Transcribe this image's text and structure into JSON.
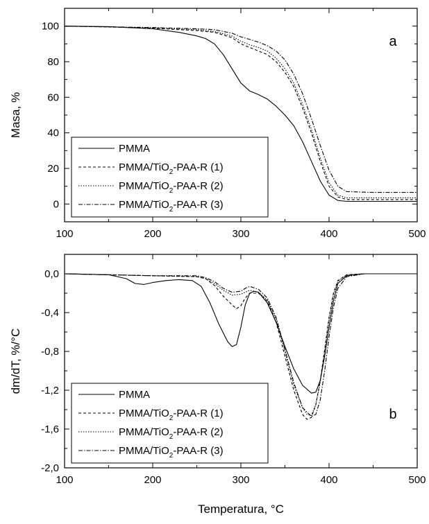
{
  "chart_data": [
    {
      "type": "line",
      "panel_label": "a",
      "ylabel": "Masa, %",
      "xlabel": "",
      "xlim": [
        100,
        500
      ],
      "ylim": [
        -10,
        110
      ],
      "x_ticks": [
        100,
        200,
        300,
        400,
        500
      ],
      "y_ticks": [
        0,
        20,
        40,
        60,
        80,
        100
      ],
      "x_tick_labels": [
        "100",
        "200",
        "300",
        "400",
        "500"
      ],
      "y_tick_labels": [
        "0",
        "20",
        "40",
        "60",
        "80",
        "100"
      ],
      "grid": false,
      "legend_position": "bottom-left",
      "series": [
        {
          "name": "PMMA",
          "legend_main": "PMMA",
          "legend_sub": "",
          "legend_tail": "",
          "dash": "solid",
          "x": [
            100,
            150,
            200,
            230,
            250,
            260,
            270,
            280,
            290,
            300,
            310,
            320,
            330,
            340,
            350,
            360,
            370,
            380,
            390,
            400,
            410,
            420,
            450,
            500
          ],
          "y": [
            100,
            99.7,
            98.5,
            96.5,
            94.5,
            93,
            90,
            84,
            76,
            68,
            63.5,
            61.5,
            59,
            55,
            50,
            44,
            35,
            24,
            13,
            5,
            2,
            1.5,
            1.5,
            1.5
          ]
        },
        {
          "name": "PMMA/TiO2-PAA-R (1)",
          "legend_main": "PMMA/TiO",
          "legend_sub": "2",
          "legend_tail": "-PAA-R (1)",
          "dash": "4,3",
          "x": [
            100,
            150,
            200,
            250,
            270,
            290,
            300,
            310,
            320,
            330,
            340,
            350,
            360,
            370,
            380,
            390,
            400,
            410,
            420,
            450,
            500
          ],
          "y": [
            100,
            99.5,
            98.8,
            97.5,
            96.5,
            93.5,
            90,
            88,
            86,
            84,
            80,
            74,
            66,
            54,
            40,
            24,
            10,
            4,
            2.5,
            2.5,
            2.5
          ]
        },
        {
          "name": "PMMA/TiO2-PAA-R (2)",
          "legend_main": "PMMA/TiO",
          "legend_sub": "2",
          "legend_tail": "-PAA-R (2)",
          "dash": "1.5,2",
          "x": [
            100,
            150,
            200,
            250,
            270,
            290,
            300,
            310,
            320,
            330,
            340,
            350,
            360,
            370,
            380,
            390,
            400,
            410,
            420,
            450,
            500
          ],
          "y": [
            100,
            99.5,
            99,
            98,
            97,
            94.5,
            91.5,
            89.5,
            88,
            86,
            82,
            76,
            68,
            56,
            42,
            26,
            12,
            5,
            3.5,
            3.5,
            3.5
          ]
        },
        {
          "name": "PMMA/TiO2-PAA-R (3)",
          "legend_main": "PMMA/TiO",
          "legend_sub": "2",
          "legend_tail": "-PAA-R (3)",
          "dash": "6,2,1.5,2",
          "x": [
            100,
            150,
            200,
            250,
            270,
            290,
            300,
            310,
            320,
            330,
            340,
            350,
            360,
            370,
            380,
            390,
            400,
            410,
            420,
            450,
            500
          ],
          "y": [
            100,
            99.6,
            99.2,
            98.5,
            98,
            96,
            94,
            92.5,
            91,
            89,
            86,
            81,
            73,
            62,
            48,
            33,
            19,
            10,
            7,
            6.5,
            6.5
          ]
        }
      ]
    },
    {
      "type": "line",
      "panel_label": "b",
      "ylabel": "dm/dT, %/°C",
      "xlabel": "Temperatura, °C",
      "xlim": [
        100,
        500
      ],
      "ylim": [
        -2.0,
        0.2
      ],
      "x_ticks": [
        100,
        200,
        300,
        400,
        500
      ],
      "y_ticks": [
        0.0,
        -0.4,
        -0.8,
        -1.2,
        -1.6,
        -2.0
      ],
      "x_tick_labels": [
        "100",
        "200",
        "300",
        "400",
        "500"
      ],
      "y_tick_labels": [
        "0,0",
        "-0,4",
        "-0,8",
        "-1,2",
        "-1,6",
        "-2,0"
      ],
      "grid": false,
      "legend_position": "bottom-left",
      "series": [
        {
          "name": "PMMA",
          "legend_main": "PMMA",
          "legend_sub": "",
          "legend_tail": "",
          "dash": "solid",
          "x": [
            100,
            150,
            170,
            180,
            190,
            200,
            215,
            230,
            245,
            255,
            265,
            275,
            285,
            290,
            295,
            300,
            305,
            310,
            315,
            320,
            330,
            340,
            350,
            360,
            370,
            380,
            385,
            390,
            395,
            400,
            405,
            410,
            420,
            440,
            470,
            500
          ],
          "y": [
            0,
            -0.01,
            -0.05,
            -0.1,
            -0.11,
            -0.09,
            -0.07,
            -0.06,
            -0.07,
            -0.13,
            -0.3,
            -0.52,
            -0.7,
            -0.75,
            -0.73,
            -0.55,
            -0.32,
            -0.2,
            -0.18,
            -0.19,
            -0.3,
            -0.5,
            -0.75,
            -0.98,
            -1.15,
            -1.23,
            -1.22,
            -1.1,
            -0.85,
            -0.55,
            -0.28,
            -0.1,
            -0.02,
            0,
            0,
            0
          ]
        },
        {
          "name": "PMMA/TiO2-PAA-R (1)",
          "legend_main": "PMMA/TiO",
          "legend_sub": "2",
          "legend_tail": "-PAA-R (1)",
          "dash": "4,3",
          "x": [
            100,
            150,
            200,
            250,
            260,
            270,
            280,
            290,
            295,
            300,
            305,
            310,
            320,
            330,
            340,
            350,
            360,
            370,
            375,
            380,
            385,
            390,
            395,
            400,
            405,
            410,
            420,
            440,
            470,
            500
          ],
          "y": [
            0,
            -0.01,
            -0.02,
            -0.03,
            -0.05,
            -0.12,
            -0.23,
            -0.32,
            -0.36,
            -0.33,
            -0.25,
            -0.2,
            -0.2,
            -0.28,
            -0.5,
            -0.85,
            -1.2,
            -1.45,
            -1.5,
            -1.48,
            -1.35,
            -1.1,
            -0.78,
            -0.45,
            -0.2,
            -0.07,
            -0.01,
            0,
            0,
            0
          ]
        },
        {
          "name": "PMMA/TiO2-PAA-R (2)",
          "legend_main": "PMMA/TiO",
          "legend_sub": "2",
          "legend_tail": "-PAA-R (2)",
          "dash": "1.5,2",
          "x": [
            100,
            150,
            200,
            250,
            260,
            270,
            280,
            290,
            300,
            305,
            310,
            320,
            330,
            340,
            350,
            360,
            370,
            375,
            380,
            385,
            390,
            395,
            400,
            405,
            410,
            420,
            440,
            470,
            500
          ],
          "y": [
            0,
            -0.01,
            -0.02,
            -0.03,
            -0.05,
            -0.1,
            -0.17,
            -0.22,
            -0.21,
            -0.19,
            -0.17,
            -0.19,
            -0.27,
            -0.47,
            -0.8,
            -1.15,
            -1.38,
            -1.45,
            -1.46,
            -1.35,
            -1.12,
            -0.8,
            -0.47,
            -0.22,
            -0.08,
            -0.01,
            0,
            0,
            0
          ]
        },
        {
          "name": "PMMA/TiO2-PAA-R (3)",
          "legend_main": "PMMA/TiO",
          "legend_sub": "2",
          "legend_tail": "-PAA-R (3)",
          "dash": "6,2,1.5,2",
          "x": [
            100,
            150,
            200,
            250,
            260,
            270,
            280,
            290,
            300,
            305,
            310,
            320,
            330,
            340,
            350,
            360,
            370,
            380,
            385,
            390,
            395,
            400,
            405,
            410,
            420,
            440,
            470,
            500
          ],
          "y": [
            0,
            -0.01,
            -0.02,
            -0.02,
            -0.04,
            -0.08,
            -0.15,
            -0.19,
            -0.18,
            -0.15,
            -0.13,
            -0.16,
            -0.25,
            -0.45,
            -0.78,
            -1.12,
            -1.38,
            -1.47,
            -1.45,
            -1.3,
            -1.0,
            -0.65,
            -0.35,
            -0.15,
            -0.03,
            0,
            0,
            0
          ]
        }
      ]
    }
  ]
}
